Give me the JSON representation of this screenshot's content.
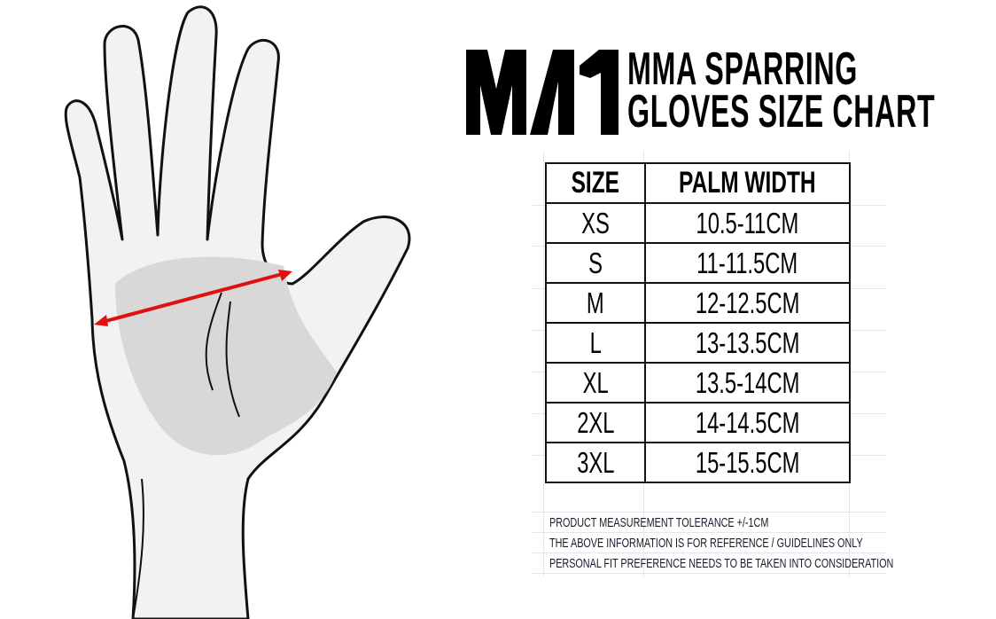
{
  "logo": {
    "text": "MA1"
  },
  "title": {
    "line1": "MMA SPARRING",
    "line2": "GLOVES SIZE CHART"
  },
  "table": {
    "headers": [
      "SIZE",
      "PALM WIDTH"
    ],
    "rows": [
      [
        "XS",
        "10.5-11CM"
      ],
      [
        "S",
        "11-11.5CM"
      ],
      [
        "M",
        "12-12.5CM"
      ],
      [
        "L",
        "13-13.5CM"
      ],
      [
        "XL",
        "13.5-14CM"
      ],
      [
        "2XL",
        "14-14.5CM"
      ],
      [
        "3XL",
        "15-15.5CM"
      ]
    ]
  },
  "notes": [
    "PRODUCT MEASUREMENT TOLERANCE +/-1CM",
    "THE ABOVE INFORMATION IS FOR REFERENCE / GUIDELINES ONLY",
    "PERSONAL FIT PREFERENCE NEEDS TO BE TAKEN INTO CONSIDERATION"
  ],
  "colors": {
    "measure_arrow": "#e01010",
    "text": "#000000"
  }
}
